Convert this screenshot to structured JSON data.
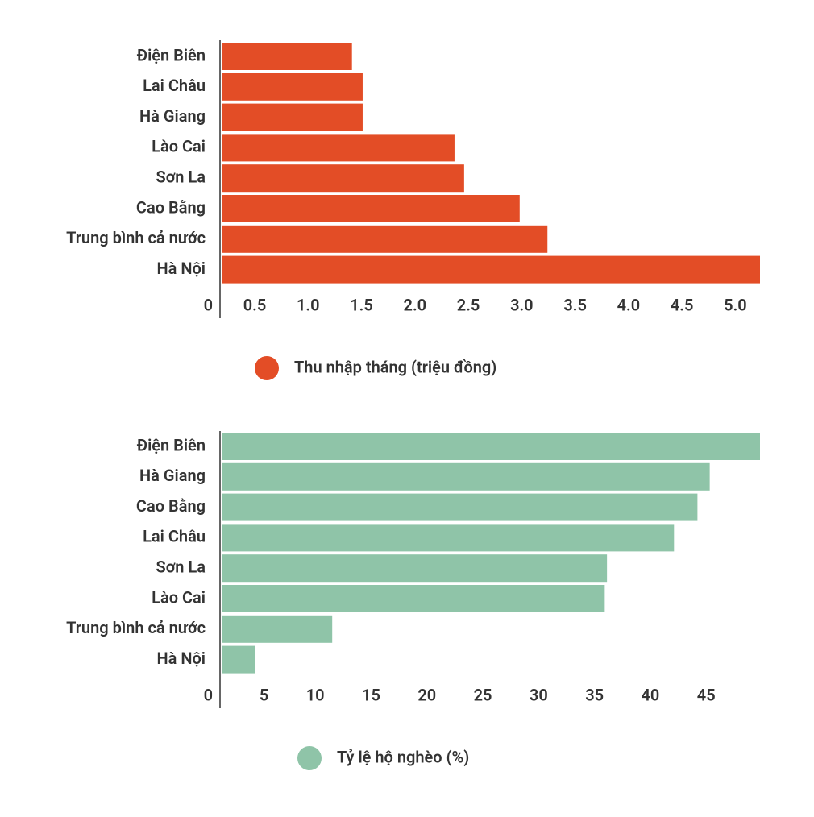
{
  "chart_data": [
    {
      "type": "barh",
      "categories": [
        "Điện Biên",
        "Lai Châu",
        "Hà Giang",
        "Lào Cai",
        "Sơn La",
        "Cao Bằng",
        "Trung bình cả nước",
        "Hà Nội"
      ],
      "series": [
        {
          "name": "Thu nhập tháng (triệu đồng)",
          "color": "#e34d26",
          "values": [
            1.22,
            1.32,
            1.32,
            2.18,
            2.27,
            2.79,
            3.05,
            5.04
          ]
        }
      ],
      "xlim": [
        0,
        5.04
      ],
      "xticks": [
        0,
        0.5,
        {
          "value": 1,
          "label": "1.0"
        },
        1.5,
        {
          "value": 2,
          "label": "2.0"
        },
        2.5,
        {
          "value": 3,
          "label": "3.0"
        },
        3.5,
        {
          "value": 4,
          "label": "4.0"
        },
        4.5,
        {
          "value": 5,
          "label": "5.0"
        }
      ],
      "grid": false
    },
    {
      "type": "barh",
      "categories": [
        "Điện Biên",
        "Hà Giang",
        "Cao Bằng",
        "Lai Châu",
        "Sơn La",
        "Lào Cai",
        "Trung bình cả nước",
        "Hà Nội"
      ],
      "series": [
        {
          "name": "Tỷ lệ hộ nghèo (%)",
          "color": "#8fc4a8",
          "values": [
            48.2,
            43.7,
            42.6,
            40.5,
            34.5,
            34.3,
            9.9,
            3.0
          ]
        }
      ],
      "xlim": [
        0,
        48.2
      ],
      "xticks": [
        0,
        5,
        10,
        15,
        20,
        25,
        30,
        35,
        40,
        45
      ],
      "grid": false
    }
  ]
}
